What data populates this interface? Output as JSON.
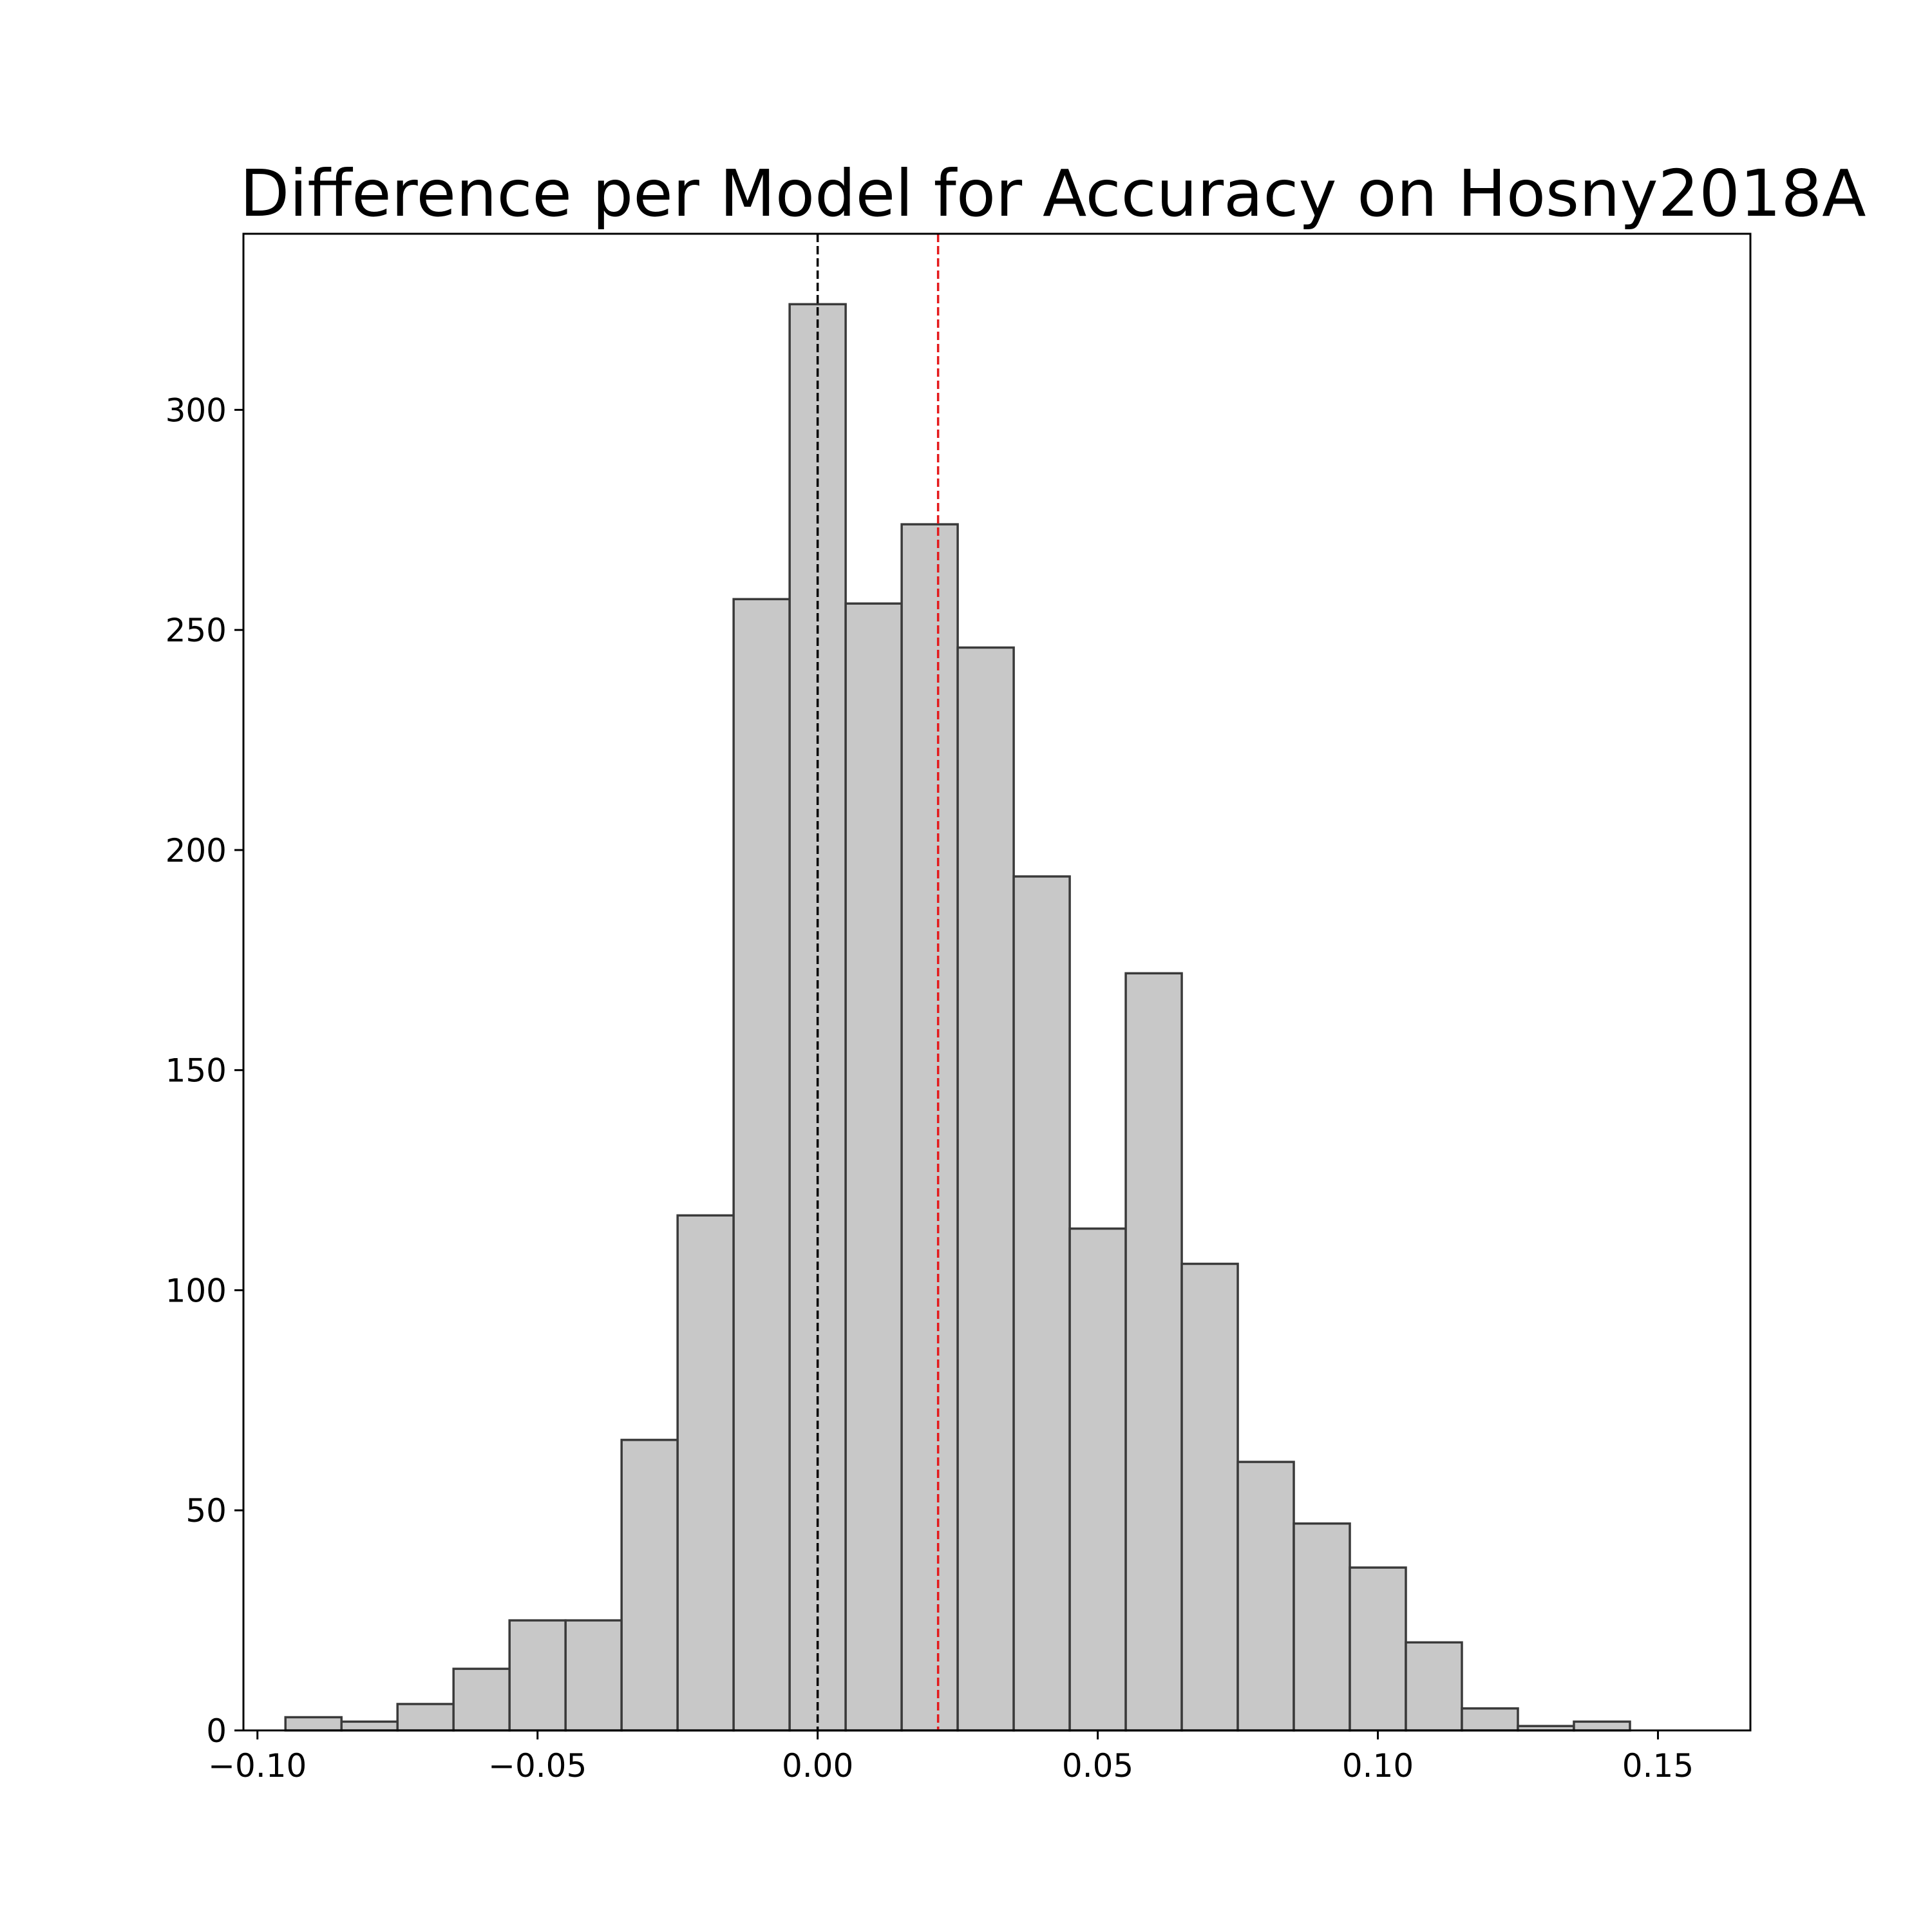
{
  "chart_data": {
    "type": "bar",
    "title": "Difference per Model for Accuracy on Hosny2018A",
    "xlabel": "",
    "ylabel": "",
    "xlim": [
      -0.1025,
      0.1665
    ],
    "ylim": [
      0,
      340
    ],
    "bin_width": 0.01,
    "bins": [
      {
        "x0": -0.095,
        "x1": -0.085,
        "count": 3
      },
      {
        "x0": -0.085,
        "x1": -0.075,
        "count": 2
      },
      {
        "x0": -0.075,
        "x1": -0.065,
        "count": 6
      },
      {
        "x0": -0.065,
        "x1": -0.055,
        "count": 14
      },
      {
        "x0": -0.055,
        "x1": -0.045,
        "count": 25
      },
      {
        "x0": -0.045,
        "x1": -0.035,
        "count": 25
      },
      {
        "x0": -0.035,
        "x1": -0.025,
        "count": 66
      },
      {
        "x0": -0.025,
        "x1": -0.015,
        "count": 117
      },
      {
        "x0": -0.015,
        "x1": -0.005,
        "count": 257
      },
      {
        "x0": -0.005,
        "x1": 0.005,
        "count": 324
      },
      {
        "x0": 0.005,
        "x1": 0.015,
        "count": 256
      },
      {
        "x0": 0.015,
        "x1": 0.025,
        "count": 274
      },
      {
        "x0": 0.025,
        "x1": 0.035,
        "count": 246
      },
      {
        "x0": 0.035,
        "x1": 0.045,
        "count": 194
      },
      {
        "x0": 0.045,
        "x1": 0.055,
        "count": 114
      },
      {
        "x0": 0.055,
        "x1": 0.065,
        "count": 172
      },
      {
        "x0": 0.065,
        "x1": 0.075,
        "count": 106
      },
      {
        "x0": 0.075,
        "x1": 0.085,
        "count": 61
      },
      {
        "x0": 0.085,
        "x1": 0.095,
        "count": 47
      },
      {
        "x0": 0.095,
        "x1": 0.105,
        "count": 37
      },
      {
        "x0": 0.105,
        "x1": 0.115,
        "count": 20
      },
      {
        "x0": 0.115,
        "x1": 0.125,
        "count": 5
      },
      {
        "x0": 0.125,
        "x1": 0.135,
        "count": 1
      },
      {
        "x0": 0.135,
        "x1": 0.145,
        "count": 2
      },
      {
        "x0": 0.145,
        "x1": 0.155,
        "count": 0
      }
    ],
    "x_ticks": [
      -0.1,
      -0.05,
      0.0,
      0.05,
      0.1,
      0.15
    ],
    "x_tick_labels": [
      "−0.10",
      "−0.05",
      "0.00",
      "0.05",
      "0.10",
      "0.15"
    ],
    "y_ticks": [
      0,
      50,
      100,
      150,
      200,
      250,
      300
    ],
    "y_tick_labels": [
      "0",
      "50",
      "100",
      "150",
      "200",
      "250",
      "300"
    ],
    "reference_lines": [
      {
        "x": 0.0,
        "color": "#000000",
        "style": "dashed"
      },
      {
        "x": 0.0215,
        "color": "#e41a1c",
        "style": "dashed"
      }
    ],
    "grid": false,
    "bar_fill": "#c8c8c8",
    "bar_edge": "#3a3a3a"
  }
}
